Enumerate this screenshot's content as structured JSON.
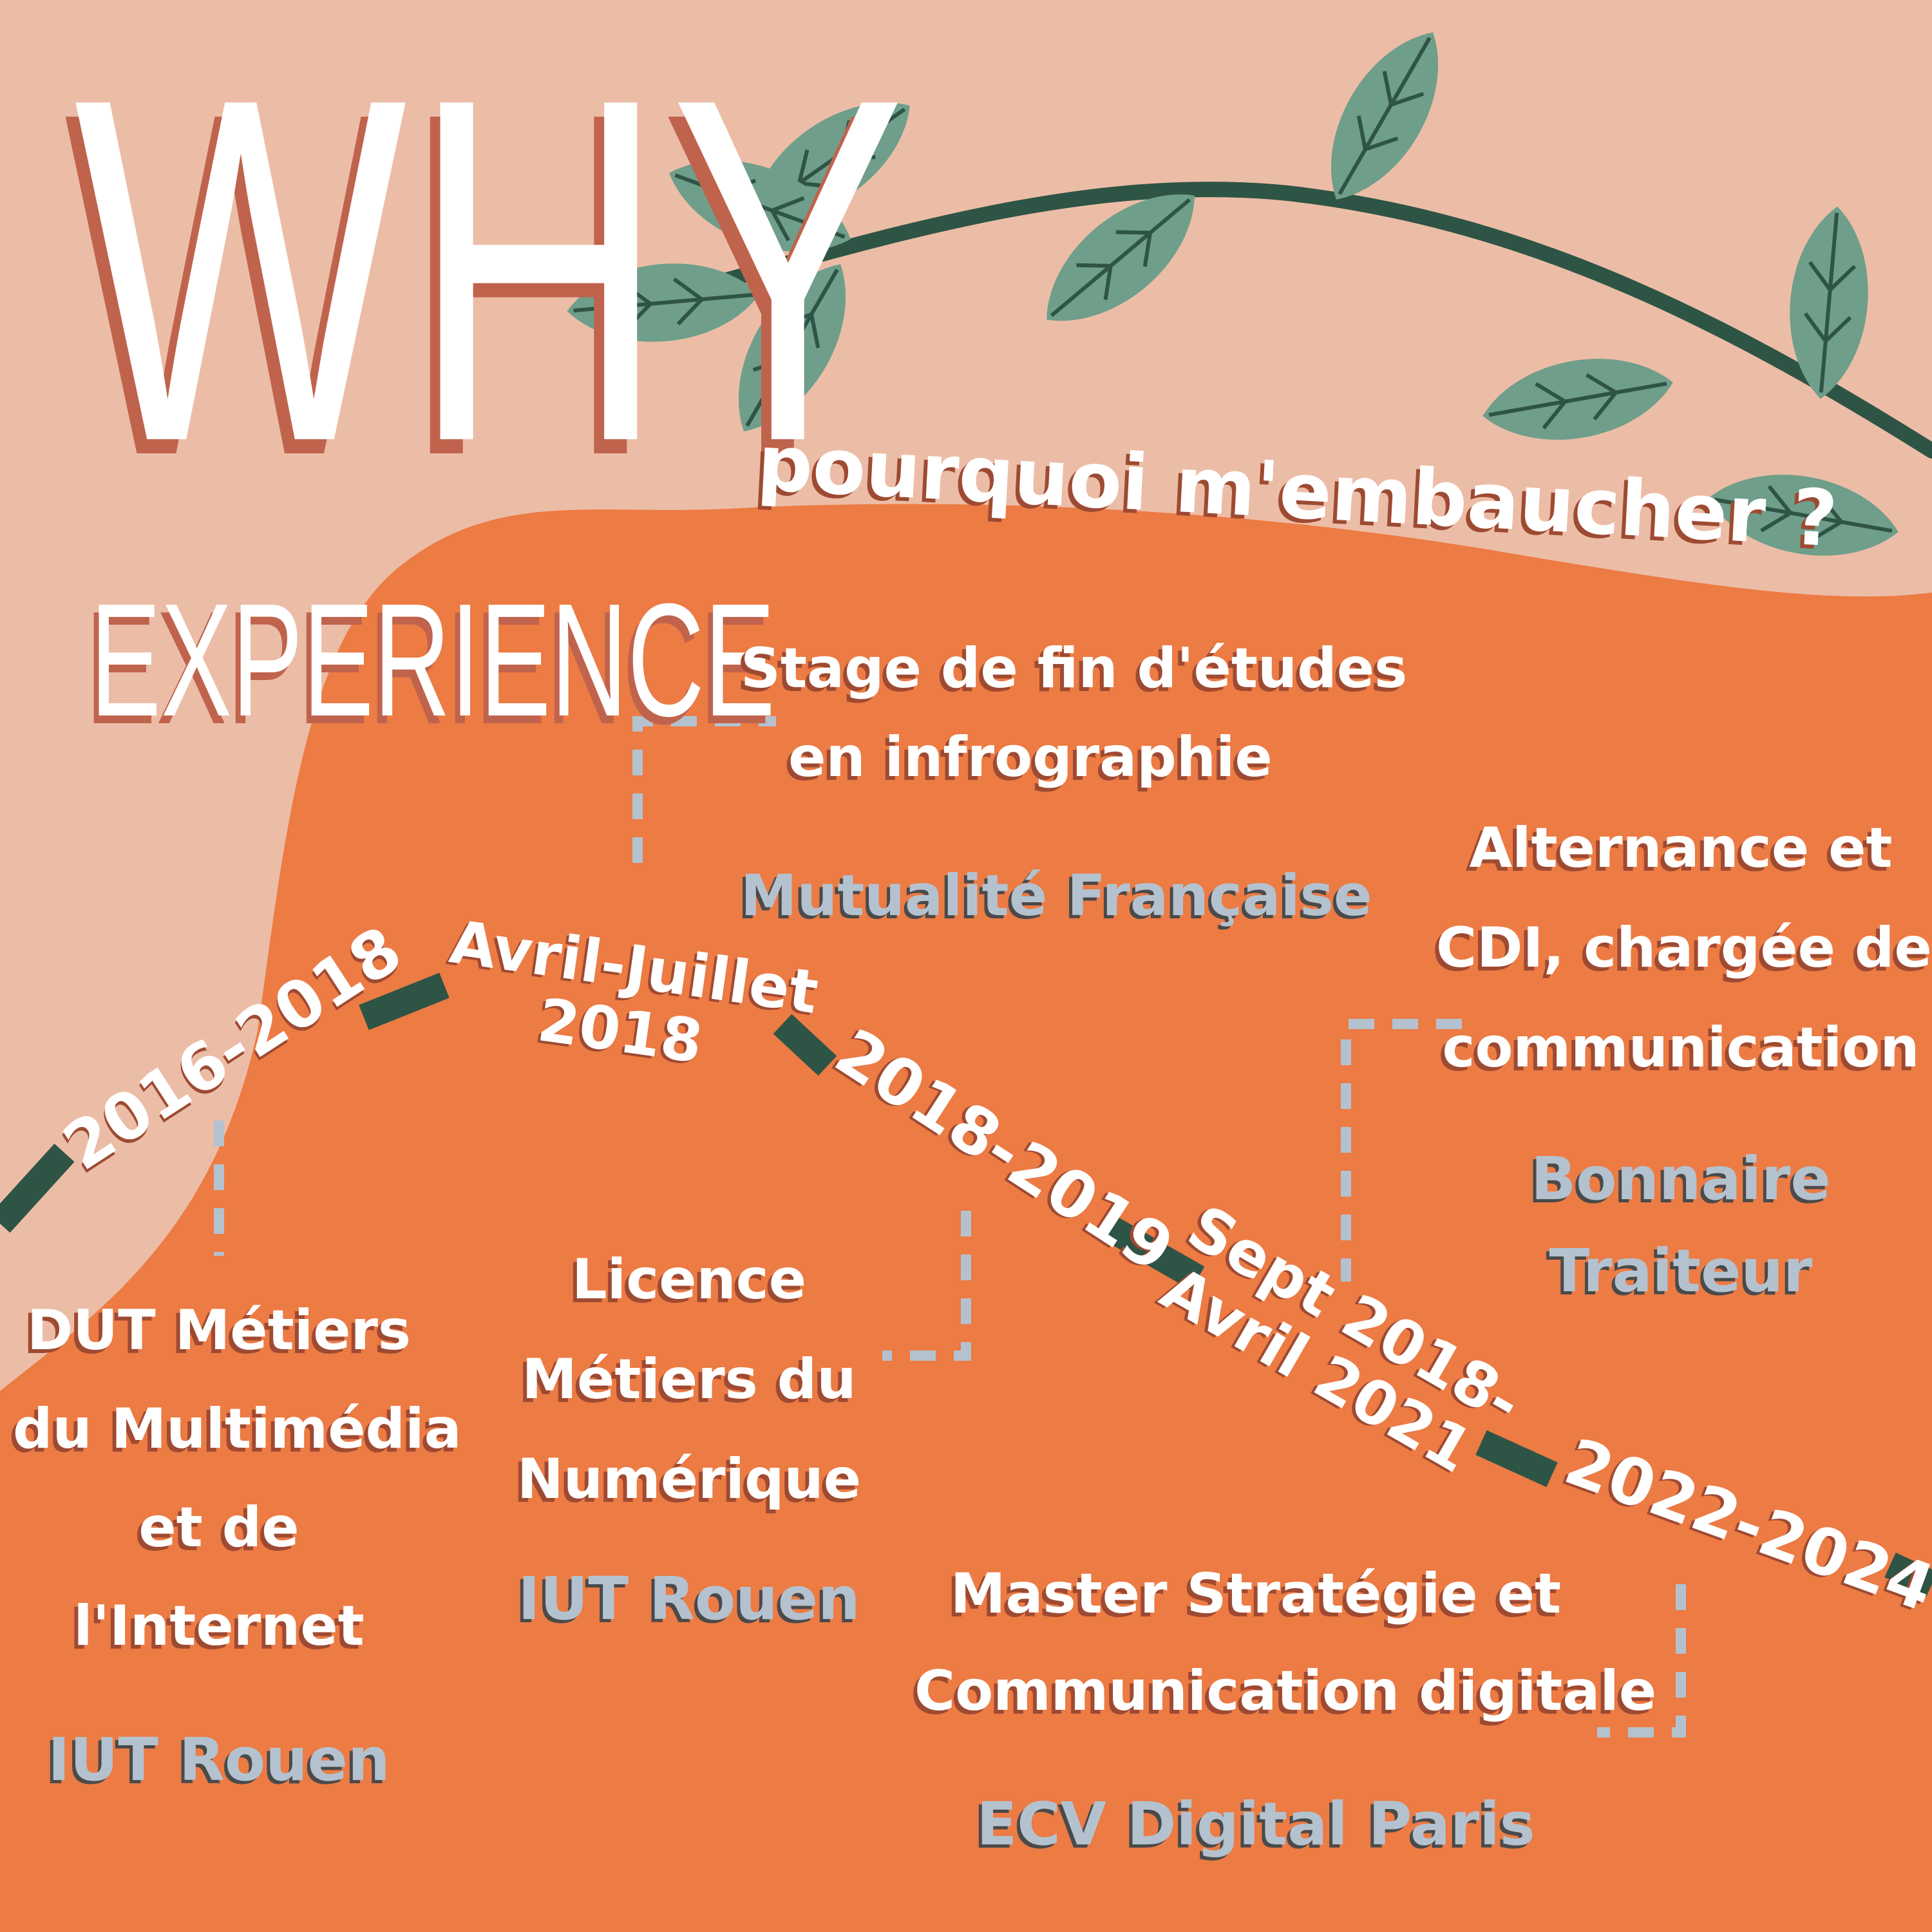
{
  "title": "WHY",
  "section": "EXPERIENCE",
  "subtitle": "pourquoi m'embaucher ?",
  "colors": {
    "background": "#ecbda6",
    "blob": "#ec7b44",
    "vine": "#2e5445",
    "leaf": "#6f9e8b",
    "connector": "#b4c2cf",
    "text_shadow": "#9e4a32",
    "org_text": "#b4c2cf"
  },
  "timeline": {
    "dates": [
      {
        "line1": "2016-2018"
      },
      {
        "line1": "Avril-Juillet",
        "line2": "2018"
      },
      {
        "line1": "2018-2019"
      },
      {
        "line1": "Sept 2018-",
        "line2": "Avril 2021"
      },
      {
        "line1": "2022-2024"
      }
    ],
    "entries": [
      {
        "lines": [
          "DUT Métiers",
          "du Multimédia",
          "et de",
          "l'Internet"
        ],
        "org": "IUT Rouen"
      },
      {
        "lines": [
          "Stage de fin d'études",
          "en infrographie"
        ],
        "org": "Mutualité Française"
      },
      {
        "lines": [
          "Licence",
          "Métiers du",
          "Numérique"
        ],
        "org": "IUT Rouen"
      },
      {
        "lines": [
          "Alternance et",
          "CDI, chargée de",
          "communication"
        ],
        "org_lines": [
          "Bonnaire",
          "Traiteur"
        ]
      },
      {
        "lines": [
          "Master Stratégie et",
          "Communication digitale"
        ],
        "org": "ECV Digital Paris"
      }
    ]
  }
}
